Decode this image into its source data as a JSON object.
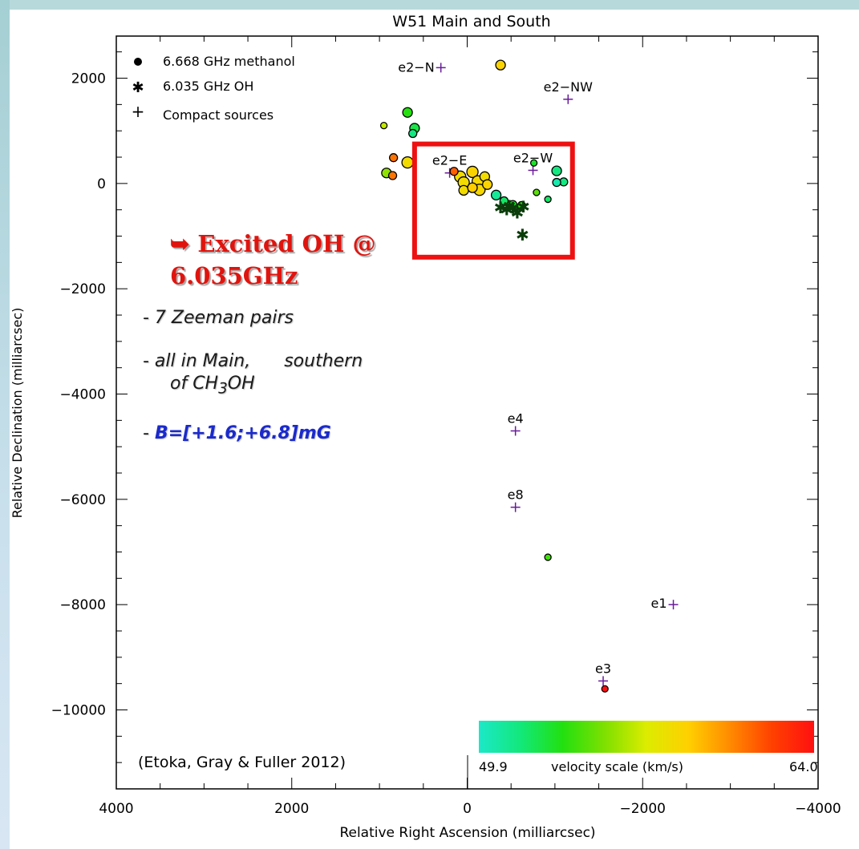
{
  "chart_data": {
    "type": "scatter",
    "title": "W51 Main and South",
    "xlabel": "Relative Right Ascension (milliarcsec)",
    "ylabel": "Relative Declination (milliarcsec)",
    "xlim": [
      4000,
      -4000
    ],
    "ylim": [
      -11500,
      2800
    ],
    "x_ticks": [
      "4000",
      "2000",
      "0",
      "−2000",
      "−4000"
    ],
    "x_tick_values": [
      4000,
      2000,
      0,
      -2000,
      -4000
    ],
    "y_ticks": [
      "2000",
      "0",
      "−2000",
      "−4000",
      "−6000",
      "−8000",
      "−10000"
    ],
    "y_tick_values": [
      2000,
      0,
      -2000,
      -4000,
      -6000,
      -8000,
      -10000
    ],
    "legend": {
      "position": "top-left",
      "entries": [
        {
          "symbol": "filled-circle",
          "label": "6.668 GHz methanol"
        },
        {
          "symbol": "asterisk",
          "label": "6.035 GHz OH"
        },
        {
          "symbol": "plus",
          "label": "Compact sources"
        }
      ]
    },
    "colorbar": {
      "label": "velocity scale (km/s)",
      "min_label": "49.9",
      "max_label": "64.0",
      "min": 49.9,
      "max": 64.0,
      "colors": [
        "#1ce8c8",
        "#12e87a",
        "#22e010",
        "#7ee000",
        "#dcec00",
        "#ffd000",
        "#ff8a00",
        "#ff4000",
        "#ff1010"
      ]
    },
    "compact_sources": [
      {
        "name": "e2−N",
        "x": 300,
        "y": 2200
      },
      {
        "name": "e2−NW",
        "x": -1150,
        "y": 1600
      },
      {
        "name": "e2−E",
        "x": 200,
        "y": 200
      },
      {
        "name": "e2−W",
        "x": -750,
        "y": 250
      },
      {
        "name": "e4",
        "x": -550,
        "y": -4700
      },
      {
        "name": "e8",
        "x": -550,
        "y": -6150
      },
      {
        "name": "e1",
        "x": -2350,
        "y": -8000
      },
      {
        "name": "e3",
        "x": -1550,
        "y": -9450
      }
    ],
    "methanol_masers": [
      {
        "x": -380,
        "y": 2250,
        "v": 58.5,
        "r": 6
      },
      {
        "x": 950,
        "y": 1100,
        "v": 56.5,
        "r": 4
      },
      {
        "x": 680,
        "y": 1350,
        "v": 53.5,
        "r": 6
      },
      {
        "x": 600,
        "y": 1050,
        "v": 52.5,
        "r": 6
      },
      {
        "x": 620,
        "y": 950,
        "v": 51.5,
        "r": 5
      },
      {
        "x": 840,
        "y": 490,
        "v": 61.0,
        "r": 5
      },
      {
        "x": 680,
        "y": 400,
        "v": 58.0,
        "r": 7
      },
      {
        "x": 920,
        "y": 200,
        "v": 55.5,
        "r": 6
      },
      {
        "x": 850,
        "y": 150,
        "v": 61.0,
        "r": 5
      },
      {
        "x": 80,
        "y": 130,
        "v": 58.0,
        "r": 7
      },
      {
        "x": 40,
        "y": 20,
        "v": 58.0,
        "r": 7
      },
      {
        "x": -60,
        "y": 220,
        "v": 58.5,
        "r": 7
      },
      {
        "x": -120,
        "y": 40,
        "v": 58.2,
        "r": 7
      },
      {
        "x": -200,
        "y": 130,
        "v": 58.0,
        "r": 6
      },
      {
        "x": 150,
        "y": 230,
        "v": 61.5,
        "r": 5
      },
      {
        "x": -140,
        "y": -120,
        "v": 58.3,
        "r": 7
      },
      {
        "x": 40,
        "y": -130,
        "v": 58.0,
        "r": 6
      },
      {
        "x": -230,
        "y": -20,
        "v": 58.5,
        "r": 6
      },
      {
        "x": -60,
        "y": -80,
        "v": 58.8,
        "r": 6
      },
      {
        "x": -330,
        "y": -220,
        "v": 51.0,
        "r": 6
      },
      {
        "x": -420,
        "y": -330,
        "v": 52.0,
        "r": 5
      },
      {
        "x": -520,
        "y": -400,
        "v": 53.0,
        "r": 5
      },
      {
        "x": -620,
        "y": -420,
        "v": 53.5,
        "r": 5
      },
      {
        "x": -790,
        "y": -170,
        "v": 54.5,
        "r": 4
      },
      {
        "x": -760,
        "y": 390,
        "v": 53.0,
        "r": 4
      },
      {
        "x": -1020,
        "y": 240,
        "v": 51.5,
        "r": 6
      },
      {
        "x": -1100,
        "y": 30,
        "v": 51.5,
        "r": 5
      },
      {
        "x": -1020,
        "y": 20,
        "v": 50.5,
        "r": 5
      },
      {
        "x": -920,
        "y": -300,
        "v": 52.0,
        "r": 4
      },
      {
        "x": -920,
        "y": -7100,
        "v": 54.0,
        "r": 4
      },
      {
        "x": -1570,
        "y": -9600,
        "v": 64.0,
        "r": 4
      }
    ],
    "oh_masers": [
      {
        "x": -380,
        "y": -460
      },
      {
        "x": -450,
        "y": -500
      },
      {
        "x": -520,
        "y": -470
      },
      {
        "x": -570,
        "y": -560
      },
      {
        "x": -640,
        "y": -440
      },
      {
        "x": -630,
        "y": -980
      },
      {
        "x": -480,
        "y": -430
      }
    ]
  },
  "annotations": {
    "highlight_box": {
      "x_range": [
        600,
        -1200
      ],
      "y_range": [
        750,
        -1400
      ],
      "color": "#ee1111"
    },
    "oh_title": "➥ Excited OH @ 6.035GHz",
    "bullet1": "- 7 Zeeman pairs",
    "bullet2_a": "- all in Main,",
    "bullet2_b": "southern",
    "bullet2_c": "of CH",
    "bullet2_sub": "3",
    "bullet2_d": "OH",
    "bullet3_dash": "- ",
    "bullet3_value": "B=[+1.6;+6.8]mG",
    "citation": "(Etoka, Gray & Fuller 2012)"
  }
}
